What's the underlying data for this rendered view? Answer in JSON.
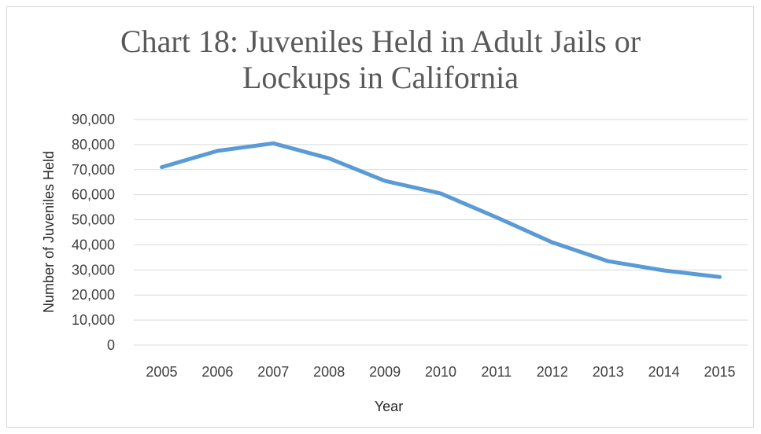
{
  "chart_data": {
    "type": "line",
    "title_lines": [
      "Chart 18: Juveniles Held in Adult Jails or",
      "Lockups in California"
    ],
    "xlabel": "Year",
    "ylabel": "Number of Juveniles Held",
    "categories": [
      "2005",
      "2006",
      "2007",
      "2008",
      "2009",
      "2010",
      "2011",
      "2012",
      "2013",
      "2014",
      "2015"
    ],
    "series": [
      {
        "values": [
          71000,
          77500,
          80500,
          74500,
          65500,
          60500,
          51000,
          41000,
          33500,
          29800,
          27200
        ],
        "color": "#5b9bd5"
      }
    ],
    "ylim": [
      0,
      90000
    ],
    "yticks": [
      "0",
      "10,000",
      "20,000",
      "30,000",
      "40,000",
      "50,000",
      "60,000",
      "70,000",
      "80,000",
      "90,000"
    ],
    "grid": true,
    "legend": "none"
  }
}
